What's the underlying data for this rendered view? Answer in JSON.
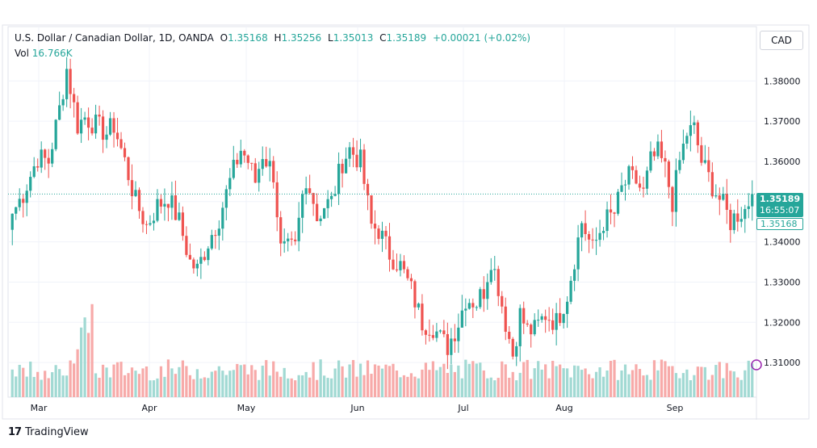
{
  "legend": {
    "symbol": "U.S. Dollar / Canadian Dollar, 1D, OANDA",
    "open_key": "O",
    "open": "1.35168",
    "high_key": "H",
    "high": "1.35256",
    "low_key": "L",
    "low": "1.35013",
    "close_key": "C",
    "close": "1.35189",
    "change": "+0.00021 (+0.02%)",
    "vol_key": "Vol",
    "vol": "16.766K"
  },
  "currency_button": "CAD",
  "price_tag": {
    "last": "1.35189",
    "countdown": "16:55:07",
    "open": "1.35168"
  },
  "branding": {
    "name": "TradingView"
  },
  "colors": {
    "up": "#26a69a",
    "down": "#ef5350",
    "up_vol": "#a1d9d3",
    "down_vol": "#f7aaa9"
  },
  "chart_data": {
    "type": "candlestick",
    "y_ticks": [
      "1.38000",
      "1.37000",
      "1.36000",
      "1.35000",
      "1.34000",
      "1.33000",
      "1.32000",
      "1.31000"
    ],
    "y_tick_values": [
      1.38,
      1.37,
      1.36,
      1.35,
      1.34,
      1.33,
      1.32,
      1.31
    ],
    "x_ticks": [
      "Mar",
      "Apr",
      "May",
      "Jun",
      "Jul",
      "Aug",
      "Sep"
    ],
    "ylim": [
      1.3014,
      1.3935
    ],
    "grid": true,
    "last_price": 1.35189,
    "volume_unit": "K",
    "close_anchors": [
      [
        0,
        1.347
      ],
      [
        3,
        1.352
      ],
      [
        7,
        1.361
      ],
      [
        10,
        1.36
      ],
      [
        13,
        1.373
      ],
      [
        15,
        1.383
      ],
      [
        18,
        1.369
      ],
      [
        20,
        1.371
      ],
      [
        23,
        1.369
      ],
      [
        26,
        1.367
      ],
      [
        28,
        1.369
      ],
      [
        31,
        1.36
      ],
      [
        34,
        1.35
      ],
      [
        37,
        1.344
      ],
      [
        40,
        1.349
      ],
      [
        43,
        1.351
      ],
      [
        46,
        1.345
      ],
      [
        49,
        1.335
      ],
      [
        51,
        1.333
      ],
      [
        54,
        1.34
      ],
      [
        57,
        1.346
      ],
      [
        60,
        1.355
      ],
      [
        63,
        1.363
      ],
      [
        65,
        1.36
      ],
      [
        67,
        1.355
      ],
      [
        69,
        1.362
      ],
      [
        72,
        1.357
      ],
      [
        74,
        1.338
      ],
      [
        78,
        1.338
      ],
      [
        80,
        1.351
      ],
      [
        82,
        1.355
      ],
      [
        84,
        1.346
      ],
      [
        86,
        1.349
      ],
      [
        88,
        1.35
      ],
      [
        91,
        1.36
      ],
      [
        93,
        1.363
      ],
      [
        96,
        1.36
      ],
      [
        99,
        1.344
      ],
      [
        101,
        1.343
      ],
      [
        104,
        1.337
      ],
      [
        107,
        1.334
      ],
      [
        110,
        1.328
      ],
      [
        113,
        1.32
      ],
      [
        116,
        1.319
      ],
      [
        118,
        1.316
      ],
      [
        120,
        1.314
      ],
      [
        123,
        1.32
      ],
      [
        125,
        1.326
      ],
      [
        128,
        1.325
      ],
      [
        130,
        1.328
      ],
      [
        132,
        1.336
      ],
      [
        134,
        1.329
      ],
      [
        136,
        1.32
      ],
      [
        138,
        1.312
      ],
      [
        140,
        1.322
      ],
      [
        142,
        1.318
      ],
      [
        144,
        1.318
      ],
      [
        147,
        1.322
      ],
      [
        150,
        1.32
      ],
      [
        153,
        1.327
      ],
      [
        155,
        1.336
      ],
      [
        157,
        1.345
      ],
      [
        160,
        1.338
      ],
      [
        163,
        1.345
      ],
      [
        166,
        1.347
      ],
      [
        168,
        1.353
      ],
      [
        170,
        1.356
      ],
      [
        172,
        1.355
      ],
      [
        174,
        1.352
      ],
      [
        176,
        1.36
      ],
      [
        178,
        1.362
      ],
      [
        180,
        1.358
      ],
      [
        182,
        1.35
      ],
      [
        184,
        1.36
      ],
      [
        186,
        1.367
      ],
      [
        188,
        1.368
      ],
      [
        190,
        1.36
      ],
      [
        193,
        1.354
      ],
      [
        196,
        1.349
      ],
      [
        198,
        1.345
      ],
      [
        200,
        1.347
      ],
      [
        202,
        1.348
      ],
      [
        204,
        1.35189
      ]
    ]
  }
}
